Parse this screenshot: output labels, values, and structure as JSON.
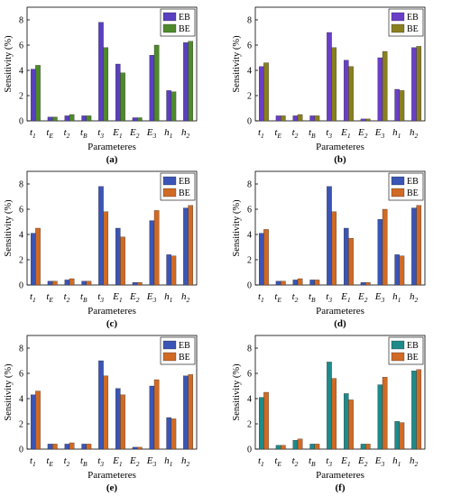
{
  "figure": {
    "ylabel": "Sensitivity (%)",
    "xlabel": "Parameteres"
  },
  "chart_data": [
    {
      "type": "bar",
      "panel_label": "(a)",
      "categories": [
        "t1",
        "tE",
        "t2",
        "tB",
        "t3",
        "E1",
        "E2",
        "E3",
        "h1",
        "h2"
      ],
      "series": [
        {
          "name": "EB",
          "color": "#5a3fc0",
          "values": [
            4.1,
            0.3,
            0.4,
            0.4,
            7.8,
            4.5,
            0.25,
            5.2,
            2.4,
            6.2
          ]
        },
        {
          "name": "BE",
          "color": "#4e8a2c",
          "values": [
            4.4,
            0.3,
            0.5,
            0.4,
            5.8,
            3.8,
            0.25,
            6.0,
            2.3,
            6.3
          ]
        }
      ],
      "ylim": [
        0,
        9
      ],
      "yticks": [
        0,
        2,
        4,
        6,
        8
      ],
      "legend_position": "top-right"
    },
    {
      "type": "bar",
      "panel_label": "(b)",
      "categories": [
        "t1",
        "tE",
        "t2",
        "tB",
        "t3",
        "E1",
        "E2",
        "E3",
        "h1",
        "h2"
      ],
      "series": [
        {
          "name": "EB",
          "color": "#6a3fc8",
          "values": [
            4.3,
            0.4,
            0.4,
            0.4,
            7.0,
            4.8,
            0.15,
            5.0,
            2.5,
            5.8
          ]
        },
        {
          "name": "BE",
          "color": "#8a7f1e",
          "values": [
            4.6,
            0.4,
            0.5,
            0.4,
            5.8,
            4.3,
            0.15,
            5.5,
            2.4,
            5.9
          ]
        }
      ],
      "ylim": [
        0,
        9
      ],
      "yticks": [
        0,
        2,
        4,
        6,
        8
      ],
      "legend_position": "top-right"
    },
    {
      "type": "bar",
      "panel_label": "(c)",
      "categories": [
        "t1",
        "tE",
        "t2",
        "tB",
        "t3",
        "E1",
        "E2",
        "E3",
        "h1",
        "h2"
      ],
      "series": [
        {
          "name": "EB",
          "color": "#3a55b5",
          "values": [
            4.1,
            0.3,
            0.4,
            0.3,
            7.8,
            4.5,
            0.2,
            5.1,
            2.4,
            6.1
          ]
        },
        {
          "name": "BE",
          "color": "#d06a24",
          "values": [
            4.5,
            0.3,
            0.5,
            0.3,
            5.8,
            3.8,
            0.2,
            5.9,
            2.3,
            6.3
          ]
        }
      ],
      "ylim": [
        0,
        9
      ],
      "yticks": [
        0,
        2,
        4,
        6,
        8
      ],
      "legend_position": "top-right"
    },
    {
      "type": "bar",
      "panel_label": "(d)",
      "categories": [
        "t1",
        "tE",
        "t2",
        "tB",
        "t3",
        "E1",
        "E2",
        "E3",
        "h1",
        "h2"
      ],
      "series": [
        {
          "name": "EB",
          "color": "#3a55b5",
          "values": [
            4.1,
            0.3,
            0.4,
            0.4,
            7.8,
            4.5,
            0.2,
            5.2,
            2.4,
            6.1
          ]
        },
        {
          "name": "BE",
          "color": "#d06a24",
          "values": [
            4.4,
            0.3,
            0.5,
            0.4,
            5.8,
            3.7,
            0.2,
            6.0,
            2.3,
            6.3
          ]
        }
      ],
      "ylim": [
        0,
        9
      ],
      "yticks": [
        0,
        2,
        4,
        6,
        8
      ],
      "legend_position": "top-right"
    },
    {
      "type": "bar",
      "panel_label": "(e)",
      "categories": [
        "t1",
        "tE",
        "t2",
        "tB",
        "t3",
        "E1",
        "E2",
        "E3",
        "h1",
        "h2"
      ],
      "series": [
        {
          "name": "EB",
          "color": "#3a55b5",
          "values": [
            4.3,
            0.4,
            0.4,
            0.4,
            7.0,
            4.8,
            0.15,
            5.0,
            2.5,
            5.8
          ]
        },
        {
          "name": "BE",
          "color": "#d06a24",
          "values": [
            4.6,
            0.4,
            0.5,
            0.4,
            5.8,
            4.3,
            0.15,
            5.5,
            2.4,
            5.9
          ]
        }
      ],
      "ylim": [
        0,
        9
      ],
      "yticks": [
        0,
        2,
        4,
        6,
        8
      ],
      "legend_position": "top-right"
    },
    {
      "type": "bar",
      "panel_label": "(f)",
      "categories": [
        "t1",
        "tE",
        "t2",
        "tB",
        "t3",
        "E1",
        "E2",
        "E3",
        "h1",
        "h2"
      ],
      "series": [
        {
          "name": "EB",
          "color": "#1f8a8a",
          "values": [
            4.1,
            0.3,
            0.7,
            0.4,
            6.9,
            4.4,
            0.4,
            5.1,
            2.2,
            6.2
          ]
        },
        {
          "name": "BE",
          "color": "#d06a24",
          "values": [
            4.5,
            0.3,
            0.8,
            0.4,
            5.6,
            3.9,
            0.4,
            5.7,
            2.1,
            6.3
          ]
        }
      ],
      "ylim": [
        0,
        9
      ],
      "yticks": [
        0,
        2,
        4,
        6,
        8
      ],
      "legend_position": "top-right"
    }
  ]
}
